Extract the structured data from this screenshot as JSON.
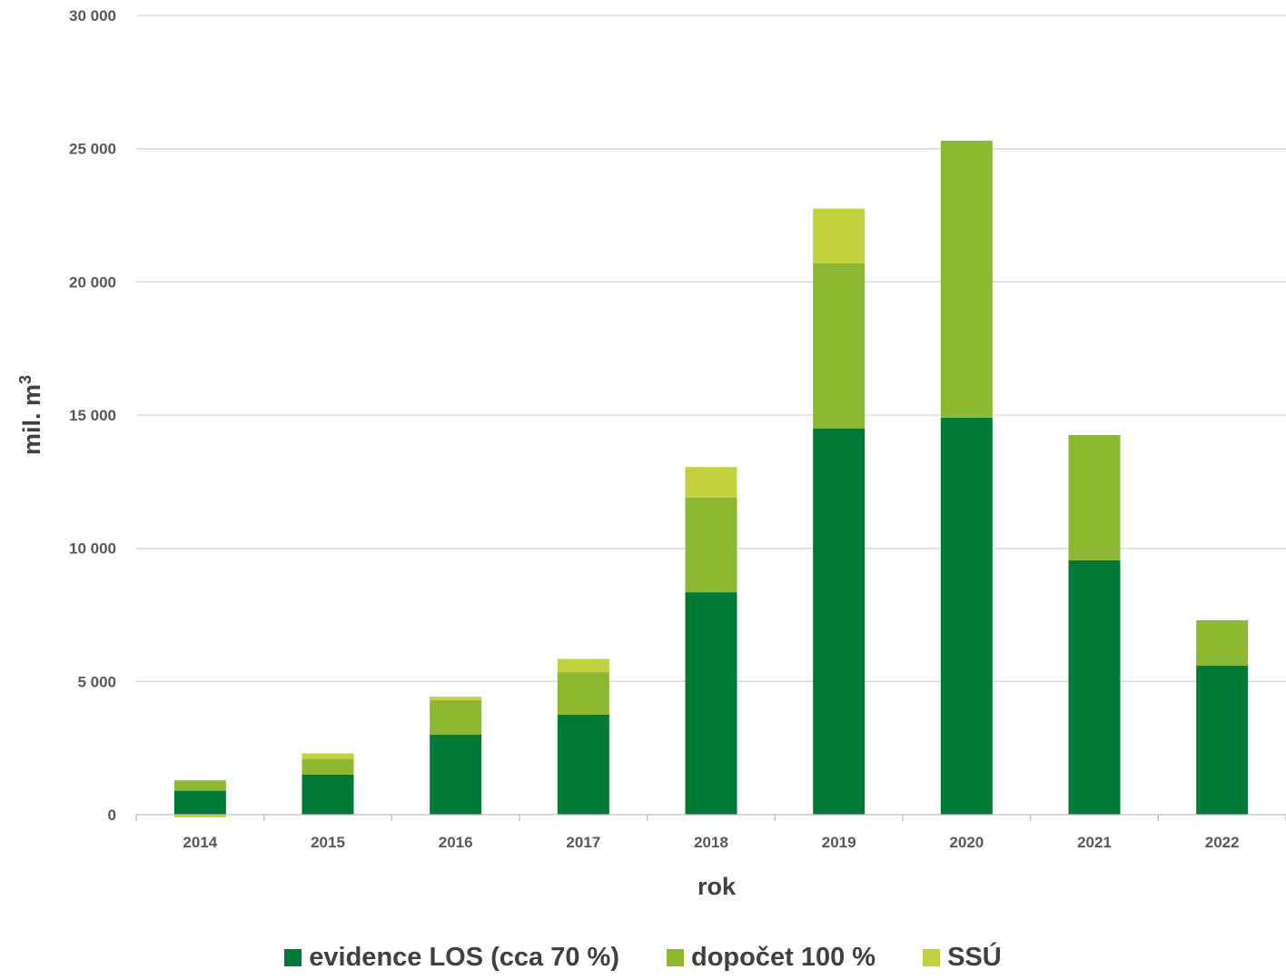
{
  "chart_data": {
    "type": "bar",
    "stacked": true,
    "categories": [
      "2014",
      "2015",
      "2016",
      "2017",
      "2018",
      "2019",
      "2020",
      "2021",
      "2022"
    ],
    "series": [
      {
        "name": "evidence LOS (cca 70 %)",
        "color": "#007a37",
        "values": [
          900,
          1500,
          3000,
          3750,
          8350,
          14500,
          14900,
          9550,
          5600
        ]
      },
      {
        "name": "dopočet 100 %",
        "color": "#8cb832",
        "values": [
          390,
          600,
          1300,
          1600,
          3550,
          6200,
          10400,
          4700,
          1700
        ]
      },
      {
        "name": "SSÚ",
        "color": "#c3d13e",
        "values": [
          -100,
          200,
          130,
          500,
          1150,
          2050,
          0,
          0,
          0
        ]
      }
    ],
    "xlabel": "rok",
    "ylabel": "mil. m³",
    "ylabel_text": "mil. m",
    "ylabel_sup": "3",
    "ylim": [
      0,
      30000
    ],
    "yticks": [
      0,
      5000,
      10000,
      15000,
      20000,
      25000,
      30000
    ],
    "ytick_labels": [
      "0",
      "5 000",
      "10 000",
      "15 000",
      "20 000",
      "25 000",
      "30 000"
    ],
    "grid": true,
    "legend_position": "bottom"
  }
}
